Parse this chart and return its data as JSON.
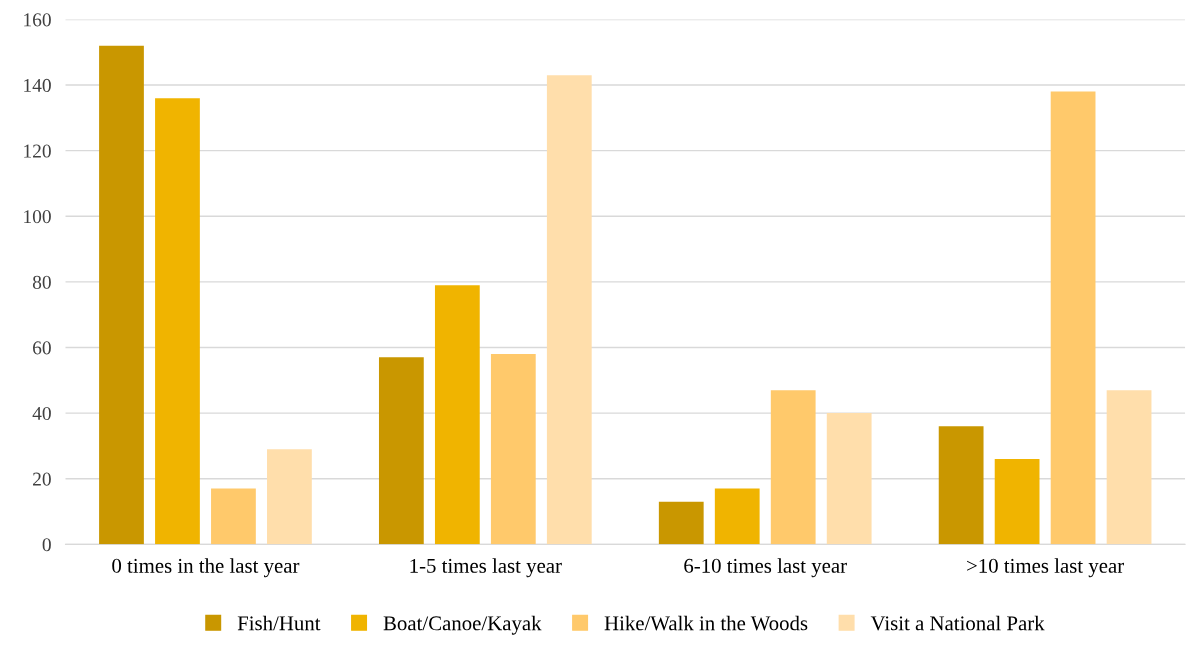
{
  "chart_data": {
    "type": "bar",
    "categories": [
      "0 times in the last year",
      "1-5 times last year",
      "6-10 times last year",
      ">10 times last year"
    ],
    "series": [
      {
        "name": "Fish/Hunt",
        "color": "#c99700",
        "values": [
          152,
          57,
          13,
          36
        ]
      },
      {
        "name": "Boat/Canoe/Kayak",
        "color": "#f0b400",
        "values": [
          136,
          79,
          17,
          26
        ]
      },
      {
        "name": "Hike/Walk in the Woods",
        "color": "#ffc96b",
        "values": [
          17,
          58,
          47,
          138
        ]
      },
      {
        "name": "Visit a National Park",
        "color": "#ffdeab",
        "values": [
          29,
          143,
          40,
          47
        ]
      }
    ],
    "ylim": [
      0,
      160
    ],
    "yticks": [
      0,
      20,
      40,
      60,
      80,
      100,
      120,
      140,
      160
    ],
    "grid": "y",
    "legend": "bottom"
  }
}
